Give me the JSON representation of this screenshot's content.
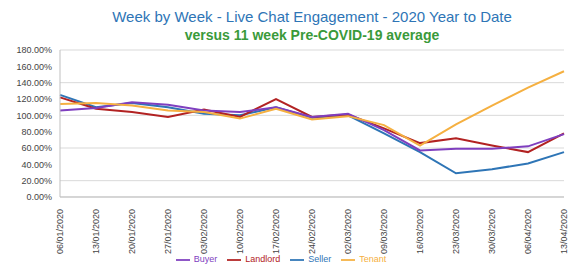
{
  "chart_data": {
    "type": "line",
    "title": "Week by Week - Live Chat Engagement - 2020 Year to Date",
    "subtitle": "versus 11 week Pre-COVID-19 average",
    "categories": [
      "06/01/2020",
      "13/01/2020",
      "20/01/2020",
      "27/01/2020",
      "03/02/2020",
      "10/02/2020",
      "17/02/2020",
      "24/02/2020",
      "02/03/2020",
      "09/03/2020",
      "16/03/2020",
      "23/03/2020",
      "30/03/2020",
      "06/04/2020",
      "13/04/2020"
    ],
    "series": [
      {
        "name": "Seller",
        "color": "#2e75b6",
        "values": [
          125,
          110,
          115,
          110,
          102,
          100,
          110,
          97,
          100,
          78,
          55,
          29,
          34,
          41,
          55
        ]
      },
      {
        "name": "Landlord",
        "color": "#b22222",
        "values": [
          122,
          108,
          104,
          98,
          107,
          98,
          120,
          98,
          101,
          84,
          66,
          72,
          63,
          55,
          78
        ]
      },
      {
        "name": "Buyer",
        "color": "#7f3fbf",
        "values": [
          106,
          109,
          116,
          113,
          106,
          104,
          110,
          98,
          102,
          82,
          57,
          59,
          59,
          62,
          77
        ]
      },
      {
        "name": "Tenant",
        "color": "#f5b041",
        "values": [
          114,
          115,
          112,
          106,
          104,
          96,
          108,
          95,
          99,
          88,
          63,
          89,
          112,
          134,
          154
        ]
      }
    ],
    "ylim": [
      0,
      180
    ],
    "yticks": [
      {
        "value": 0,
        "label": "0.00%"
      },
      {
        "value": 20,
        "label": "20.00%"
      },
      {
        "value": 40,
        "label": "40.00%"
      },
      {
        "value": 60,
        "label": "60.00%"
      },
      {
        "value": 80,
        "label": "80.00%"
      },
      {
        "value": 100,
        "label": "100.00%"
      },
      {
        "value": 120,
        "label": "120.00%"
      },
      {
        "value": 140,
        "label": "140.00%"
      },
      {
        "value": 160,
        "label": "160.00%"
      },
      {
        "value": 180,
        "label": "180.00%"
      }
    ],
    "grid": true,
    "legend": "bottom"
  }
}
